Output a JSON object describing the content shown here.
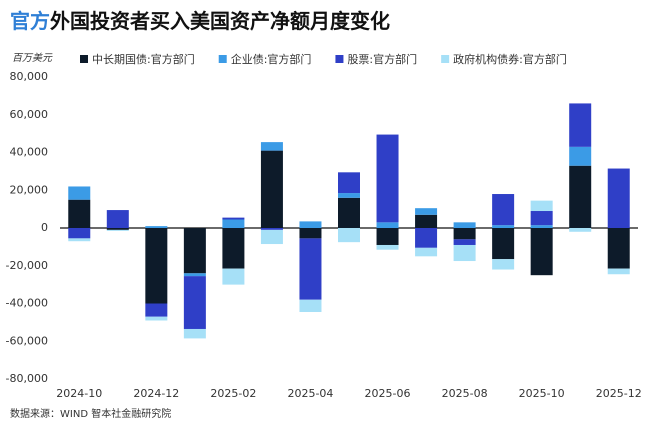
{
  "chart_data": {
    "type": "stacked-bar",
    "title_highlight": "官方",
    "title": "外国投资者买入美国资产净额月度变化",
    "y_unit": "百万美元",
    "source": "数据来源：WIND 智本社金融研究院",
    "categories": [
      "2024-10",
      null,
      "2024-12",
      null,
      "2025-02",
      null,
      "2025-04",
      null,
      "2025-06",
      null,
      "2025-08",
      null,
      "2025-10",
      null,
      "2025-12"
    ],
    "series": [
      {
        "name": "中长期国债:官方部门",
        "color": "#0d1b2a",
        "values": [
          15000,
          -1000,
          -40000,
          -24000,
          -21500,
          41000,
          -5500,
          16000,
          -9000,
          7000,
          -6000,
          -16500,
          -25000,
          33000,
          -21500
        ]
      },
      {
        "name": "企业债:官方部门",
        "color": "#3b9be6",
        "values": [
          7000,
          0,
          1000,
          -1500,
          4500,
          4500,
          3500,
          2500,
          3000,
          3500,
          3000,
          1500,
          1500,
          10000,
          0
        ]
      },
      {
        "name": "股票:官方部门",
        "color": "#2f3fc7",
        "values": [
          -5500,
          9500,
          -7000,
          -28000,
          1000,
          -1000,
          -32500,
          11000,
          46500,
          -10500,
          -3000,
          16500,
          7500,
          23000,
          31500
        ]
      },
      {
        "name": "政府机构债券:官方部门",
        "color": "#a6e0f7",
        "values": [
          -1500,
          -500,
          -2000,
          -5000,
          -8500,
          -7500,
          -6500,
          -7500,
          -2500,
          -4500,
          -8500,
          -5500,
          5500,
          -2000,
          -3000
        ]
      }
    ],
    "ylim": [
      -80000,
      80000
    ],
    "yticks": [
      {
        "value": -80000,
        "label": "-80,000"
      },
      {
        "value": -60000,
        "label": "-60,000"
      },
      {
        "value": -40000,
        "label": "-40,000"
      },
      {
        "value": -20000,
        "label": "-20,000"
      },
      0,
      {
        "value": 20000,
        "label": "20,000"
      },
      {
        "value": 40000,
        "label": "40,000"
      },
      {
        "value": 60000,
        "label": "60,000"
      },
      {
        "value": 80000,
        "label": "80,000"
      }
    ]
  }
}
